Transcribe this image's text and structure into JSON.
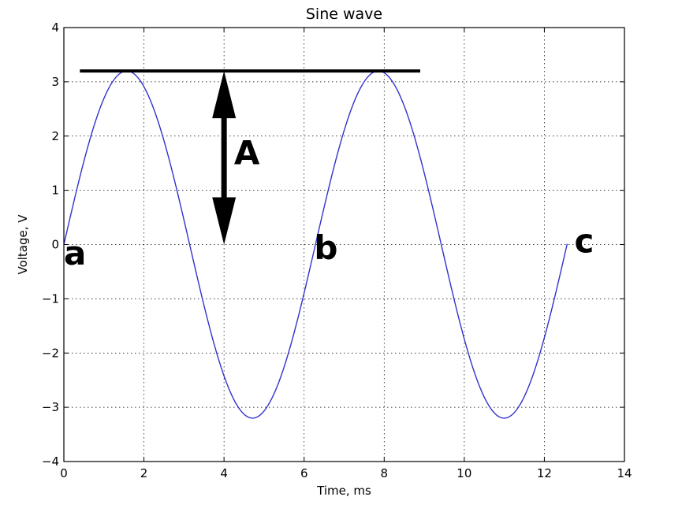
{
  "chart_data": {
    "type": "line",
    "title": "Sine wave",
    "xlabel": "Time, ms",
    "ylabel": "Voltage, V",
    "xlim": [
      0,
      14
    ],
    "ylim": [
      -4,
      4
    ],
    "x_ticks": [
      0,
      2,
      4,
      6,
      8,
      10,
      12,
      14
    ],
    "y_ticks": [
      -4,
      -3,
      -2,
      -1,
      0,
      1,
      2,
      3,
      4
    ],
    "y_tick_labels": [
      "−4",
      "−3",
      "−2",
      "−1",
      "0",
      "1",
      "2",
      "3",
      "4"
    ],
    "grid": true,
    "line_color": "#3333cc",
    "series": [
      {
        "function": "amplitude * sin(x)",
        "amplitude": 3.2,
        "x_range": [
          0,
          12.57
        ]
      }
    ],
    "annotations": {
      "peak_line": {
        "x": [
          0.4,
          8.9
        ],
        "y": 3.2
      },
      "amplitude_arrow": {
        "x": 4.0,
        "y_from": 0.0,
        "y_to": 3.2,
        "label": "A",
        "label_x": 4.25,
        "label_y": 1.65
      },
      "points": [
        {
          "label": "a",
          "x": 0.0,
          "y": -0.2
        },
        {
          "label": "b",
          "x": 6.25,
          "y": -0.1
        },
        {
          "label": "c",
          "x": 12.75,
          "y": 0.02
        }
      ]
    }
  }
}
